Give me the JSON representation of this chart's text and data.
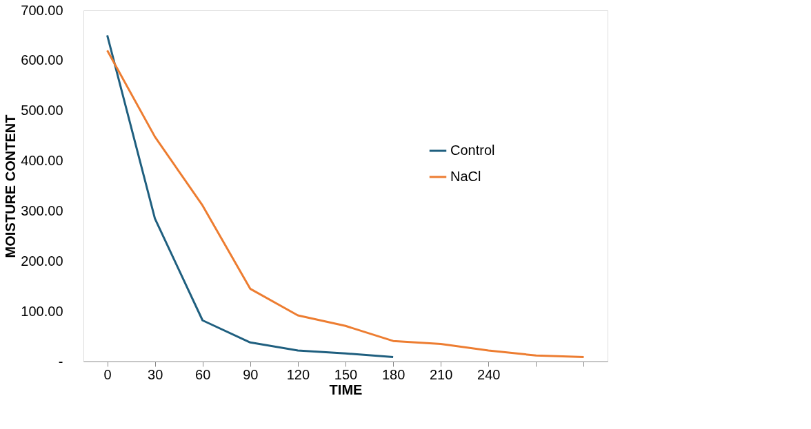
{
  "chart_data": {
    "type": "line",
    "xlabel": "TIME",
    "ylabel": "MOISTURE CONTENT",
    "categories": [
      "0",
      "30",
      "60",
      "90",
      "120",
      "150",
      "180",
      "210",
      "240",
      null,
      null
    ],
    "series": [
      {
        "name": "Control",
        "color": "#1f5f7f",
        "values": [
          650,
          285,
          82,
          38,
          22,
          16,
          9,
          null,
          null,
          null,
          null
        ]
      },
      {
        "name": "NaCl",
        "color": "#ed7d31",
        "values": [
          620,
          448,
          311,
          145,
          92,
          71,
          41,
          35,
          22,
          12,
          9
        ]
      }
    ],
    "ylim": [
      0,
      700
    ],
    "yticks": [
      {
        "value": 0,
        "label": "-"
      },
      {
        "value": 100,
        "label": "100.00"
      },
      {
        "value": 200,
        "label": "200.00"
      },
      {
        "value": 300,
        "label": "300.00"
      },
      {
        "value": 400,
        "label": "400.00"
      },
      {
        "value": 500,
        "label": "500.00"
      },
      {
        "value": 600,
        "label": "600.00"
      },
      {
        "value": 700,
        "label": "700.00"
      }
    ],
    "grid": false,
    "legend": "right",
    "marker": "none",
    "line_style": "solid"
  }
}
